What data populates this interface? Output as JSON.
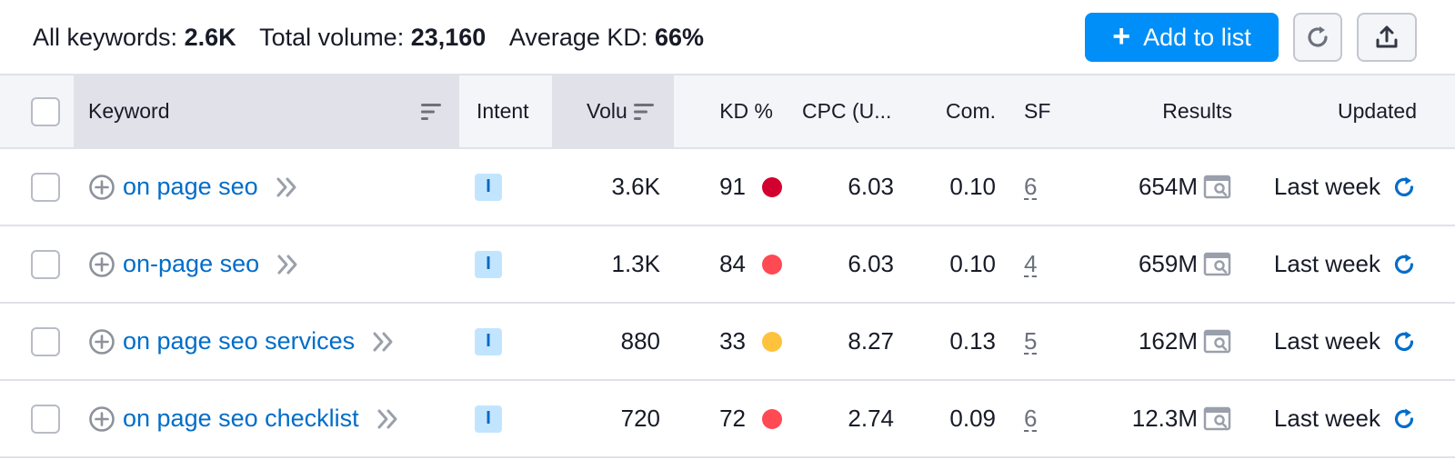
{
  "summary": {
    "all_keywords_label": "All keywords:",
    "all_keywords_value": "2.6K",
    "total_volume_label": "Total volume:",
    "total_volume_value": "23,160",
    "avg_kd_label": "Average KD:",
    "avg_kd_value": "66%"
  },
  "toolbar": {
    "add_to_list_label": "Add to list",
    "refresh_icon": "refresh-icon",
    "export_icon": "export-icon"
  },
  "columns": {
    "keyword": "Keyword",
    "intent": "Intent",
    "volume": "Volu",
    "kd": "KD %",
    "cpc": "CPC (U...",
    "com": "Com.",
    "sf": "SF",
    "results": "Results",
    "updated": "Updated"
  },
  "colors": {
    "accent": "#008ff8",
    "link": "#006dca",
    "kd_very_hard": "#d1002f",
    "kd_hard": "#ff4953",
    "kd_possible": "#ffc23d"
  },
  "rows": [
    {
      "keyword": "on page seo",
      "intent": "I",
      "volume": "3.6K",
      "kd": "91",
      "kd_color": "#d1002f",
      "cpc": "6.03",
      "com": "0.10",
      "sf": "6",
      "results": "654M",
      "updated": "Last week"
    },
    {
      "keyword": "on-page seo",
      "intent": "I",
      "volume": "1.3K",
      "kd": "84",
      "kd_color": "#ff4953",
      "cpc": "6.03",
      "com": "0.10",
      "sf": "4",
      "results": "659M",
      "updated": "Last week"
    },
    {
      "keyword": "on page seo services",
      "intent": "I",
      "volume": "880",
      "kd": "33",
      "kd_color": "#ffc23d",
      "cpc": "8.27",
      "com": "0.13",
      "sf": "5",
      "results": "162M",
      "updated": "Last week"
    },
    {
      "keyword": "on page seo checklist",
      "intent": "I",
      "volume": "720",
      "kd": "72",
      "kd_color": "#ff4953",
      "cpc": "2.74",
      "com": "0.09",
      "sf": "6",
      "results": "12.3M",
      "updated": "Last week"
    }
  ]
}
